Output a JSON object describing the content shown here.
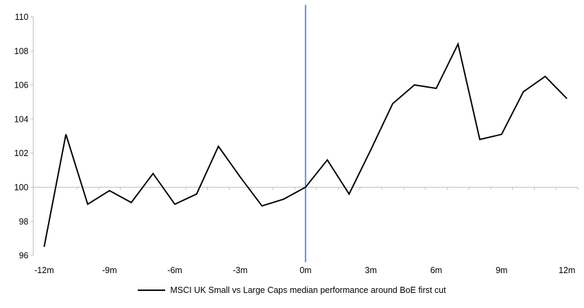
{
  "chart_data": {
    "type": "line",
    "title": "",
    "legend": "MSCI UK Small vs Large Caps median performance around BoE first cut",
    "x": [
      -12,
      -11,
      -10,
      -9,
      -8,
      -7,
      -6,
      -5,
      -4,
      -3,
      -2,
      -1,
      0,
      1,
      2,
      3,
      4,
      5,
      6,
      7,
      8,
      9,
      10,
      11,
      12
    ],
    "series": [
      {
        "name": "MSCI UK Small vs Large Caps median performance around BoE first cut",
        "values": [
          96.5,
          103.1,
          99.0,
          99.8,
          99.1,
          100.8,
          99.0,
          99.6,
          102.4,
          100.6,
          98.9,
          99.3,
          100.0,
          101.6,
          99.6,
          102.2,
          104.9,
          106.0,
          105.8,
          108.4,
          102.8,
          103.1,
          105.6,
          106.5,
          105.2
        ]
      }
    ],
    "x_tick_labels": [
      "-12m",
      "-9m",
      "-6m",
      "-3m",
      "0m",
      "3m",
      "6m",
      "9m",
      "12m"
    ],
    "x_tick_values": [
      -12,
      -9,
      -6,
      -3,
      0,
      3,
      6,
      9,
      12
    ],
    "y_tick_labels": [
      "96",
      "98",
      "100",
      "102",
      "104",
      "106",
      "108",
      "110"
    ],
    "y_ticks": [
      96,
      98,
      100,
      102,
      104,
      106,
      108,
      110
    ],
    "ylim": [
      96,
      110
    ],
    "xlim": [
      -12.5,
      12.5
    ],
    "baseline_value": 100,
    "event_line_x": 0,
    "grid": "baseline-only",
    "legend_position": "bottom",
    "colors": {
      "series_line": "#000000",
      "axis_line": "#bfbfbf",
      "event_line": "#5b8fd4",
      "tick_text": "#000000"
    }
  }
}
